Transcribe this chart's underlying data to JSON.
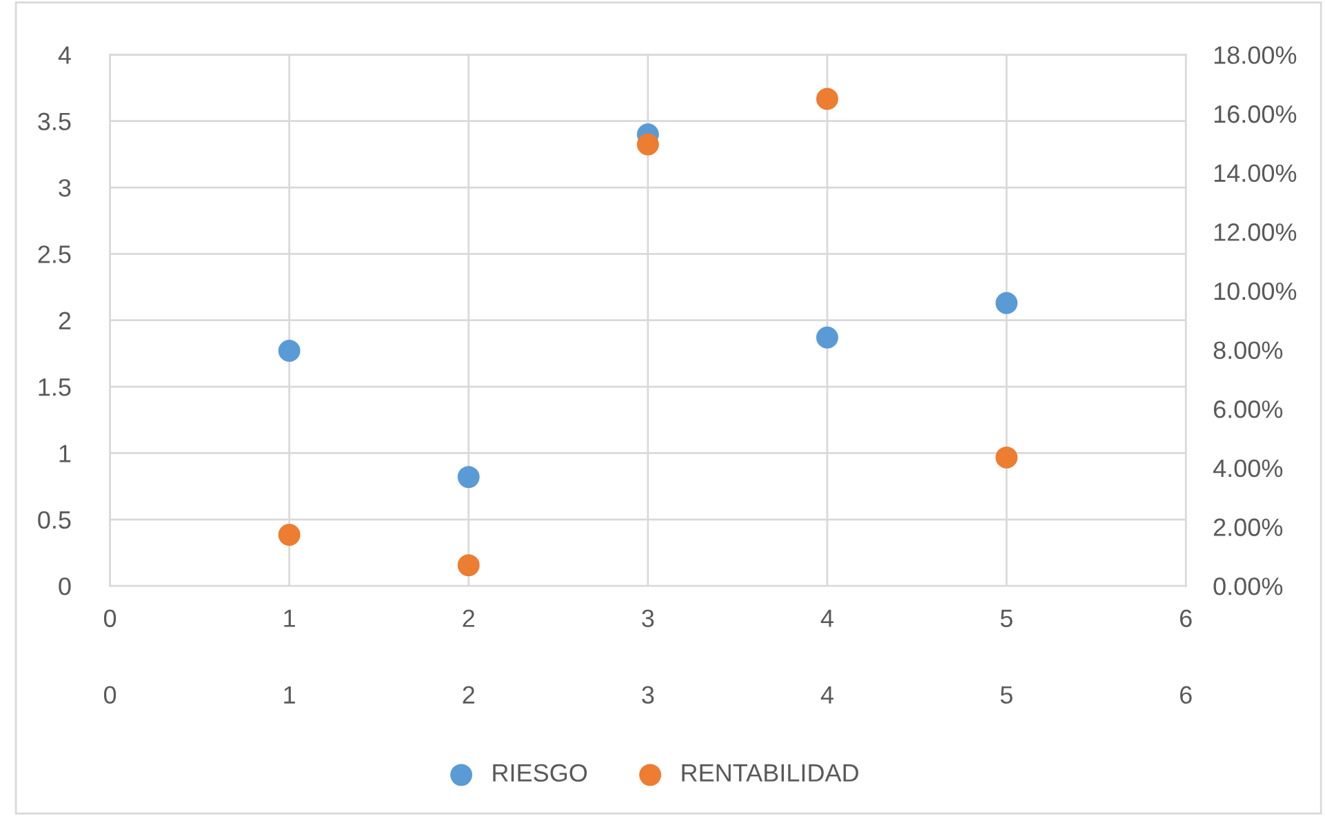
{
  "chart_data": {
    "type": "scatter",
    "marker": "circle",
    "grid": true,
    "legend": "bottom",
    "xlim": [
      0,
      6
    ],
    "xticks": [
      0,
      1,
      2,
      3,
      4,
      5,
      6
    ],
    "x2lim": [
      0,
      6
    ],
    "x2ticks": [
      0,
      1,
      2,
      3,
      4,
      5,
      6
    ],
    "ylim": [
      0,
      4
    ],
    "yticks": [
      0,
      0.5,
      1,
      1.5,
      2,
      2.5,
      3,
      3.5,
      4
    ],
    "y2lim": [
      0,
      18
    ],
    "y2ticks": [
      {
        "value": 0,
        "label": "0.00%"
      },
      {
        "value": 2,
        "label": "2.00%"
      },
      {
        "value": 4,
        "label": "4.00%"
      },
      {
        "value": 6,
        "label": "6.00%"
      },
      {
        "value": 8,
        "label": "8.00%"
      },
      {
        "value": 10,
        "label": "10.00%"
      },
      {
        "value": 12,
        "label": "12.00%"
      },
      {
        "value": 14,
        "label": "14.00%"
      },
      {
        "value": 16,
        "label": "16.00%"
      },
      {
        "value": 18,
        "label": "18.00%"
      }
    ],
    "series": [
      {
        "name": "RIESGO",
        "color": "#5b9bd5",
        "x": [
          1,
          2,
          3,
          4,
          5
        ],
        "values": [
          1.77,
          0.82,
          3.4,
          1.87,
          2.13
        ]
      },
      {
        "name": "RENTABILIDAD",
        "color": "#ed7d31",
        "axis": "y2",
        "x": [
          1,
          2,
          3,
          4,
          5
        ],
        "values": [
          1.73,
          0.7,
          14.96,
          16.5,
          4.35
        ]
      }
    ]
  }
}
